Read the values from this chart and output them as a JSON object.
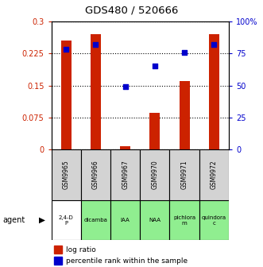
{
  "title": "GDS480 / 520666",
  "samples": [
    "GSM9965",
    "GSM9966",
    "GSM9967",
    "GSM9970",
    "GSM9971",
    "GSM9972"
  ],
  "agents": [
    "2,4-D\nP",
    "dicamba",
    "IAA",
    "NAA",
    "pichlora\nm",
    "quindora\nc"
  ],
  "agent_colors": [
    "#ffffff",
    "#90ee90",
    "#90ee90",
    "#90ee90",
    "#90ee90",
    "#90ee90"
  ],
  "log_ratio": [
    0.255,
    0.27,
    0.008,
    0.085,
    0.16,
    0.27
  ],
  "percentile_rank": [
    78,
    82,
    49,
    65,
    76,
    82
  ],
  "bar_color": "#cc2200",
  "dot_color": "#0000cc",
  "ylim_left": [
    0,
    0.3
  ],
  "ylim_right": [
    0,
    100
  ],
  "yticks_left": [
    0,
    0.075,
    0.15,
    0.225,
    0.3
  ],
  "yticks_right": [
    0,
    25,
    50,
    75,
    100
  ],
  "ytick_labels_left": [
    "0",
    "0.075",
    "0.15",
    "0.225",
    "0.3"
  ],
  "ytick_labels_right": [
    "0",
    "25",
    "50",
    "75",
    "100%"
  ],
  "bar_width": 0.35,
  "agent_label": "agent",
  "legend_log": "log ratio",
  "legend_pct": "percentile rank within the sample",
  "sample_box_color": "#d3d3d3",
  "bg_color": "#ffffff"
}
